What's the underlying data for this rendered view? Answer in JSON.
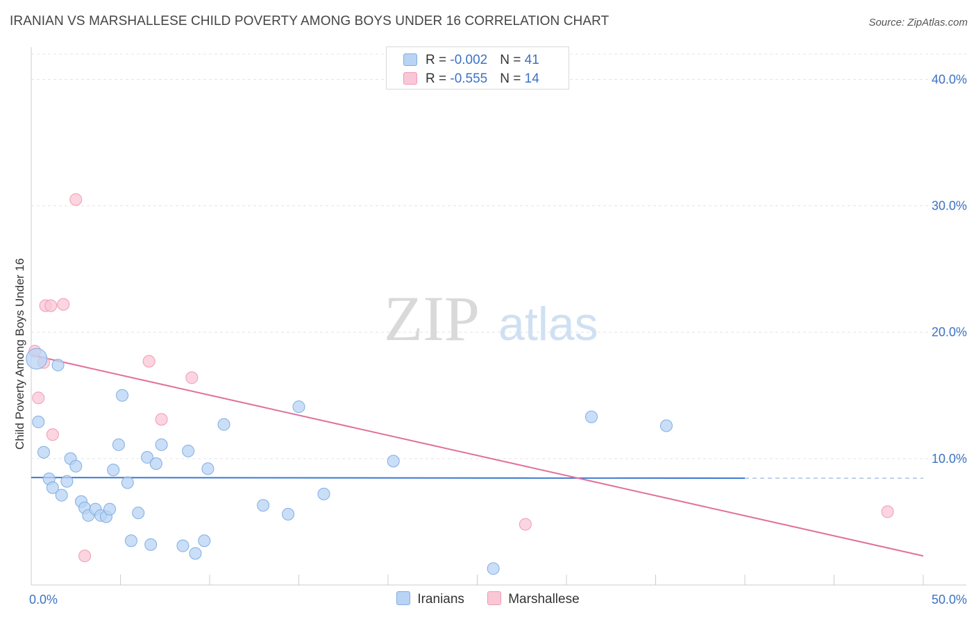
{
  "title": "IRANIAN VS MARSHALLESE CHILD POVERTY AMONG BOYS UNDER 16 CORRELATION CHART",
  "source": "Source: ZipAtlas.com",
  "watermark": {
    "zip": "ZIP",
    "atlas": "atlas"
  },
  "legend_top": {
    "rows": [
      {
        "r_label": "R = ",
        "r_value": "-0.002",
        "n_label": "N = ",
        "n_value": "41"
      },
      {
        "r_label": "R = ",
        "r_value": "-0.555",
        "n_label": "N = ",
        "n_value": "14"
      }
    ]
  },
  "legend_bottom": {
    "items": [
      "Iranians",
      "Marshallese"
    ]
  },
  "colors": {
    "iranians_fill": "#b8d3f4",
    "iranians_stroke": "#7eaee3",
    "iranians_line": "#3a78d0",
    "marshallese_fill": "#f9c7d6",
    "marshallese_stroke": "#f09ab5",
    "marshallese_line": "#e0709a",
    "tick_label": "#3b72c4",
    "grid": "#e3e3e3"
  },
  "chart_data": {
    "type": "scatter",
    "title": "IRANIAN VS MARSHALLESE CHILD POVERTY AMONG BOYS UNDER 16 CORRELATION CHART",
    "xlabel": "",
    "ylabel": "Child Poverty Among Boys Under 16",
    "xlim": [
      0,
      50
    ],
    "ylim": [
      0,
      42
    ],
    "x_tick_labels": [
      {
        "value": 0,
        "label": "0.0%"
      },
      {
        "value": 50,
        "label": "50.0%"
      }
    ],
    "y_tick_labels": [
      {
        "value": 10,
        "label": "10.0%"
      },
      {
        "value": 20,
        "label": "20.0%"
      },
      {
        "value": 30,
        "label": "30.0%"
      },
      {
        "value": 40,
        "label": "40.0%"
      }
    ],
    "grid": true,
    "legend": "top-center",
    "series": [
      {
        "name": "Iranians",
        "r": -0.002,
        "n": 41,
        "trend": {
          "x": [
            0,
            40
          ],
          "y": [
            8.5,
            8.45
          ],
          "dashed_to_x": 50
        },
        "points": [
          {
            "x": 0.3,
            "y": 17.9,
            "big": true
          },
          {
            "x": 1.5,
            "y": 17.4
          },
          {
            "x": 0.4,
            "y": 12.9
          },
          {
            "x": 0.7,
            "y": 10.5
          },
          {
            "x": 1.0,
            "y": 8.4
          },
          {
            "x": 1.2,
            "y": 7.7
          },
          {
            "x": 1.7,
            "y": 7.1
          },
          {
            "x": 2.0,
            "y": 8.2
          },
          {
            "x": 2.2,
            "y": 10.0
          },
          {
            "x": 2.5,
            "y": 9.4
          },
          {
            "x": 2.8,
            "y": 6.6
          },
          {
            "x": 3.0,
            "y": 6.1
          },
          {
            "x": 3.2,
            "y": 5.5
          },
          {
            "x": 3.6,
            "y": 6.0
          },
          {
            "x": 3.9,
            "y": 5.5
          },
          {
            "x": 4.2,
            "y": 5.4
          },
          {
            "x": 4.4,
            "y": 6.0
          },
          {
            "x": 4.6,
            "y": 9.1
          },
          {
            "x": 4.9,
            "y": 11.1
          },
          {
            "x": 5.1,
            "y": 15.0
          },
          {
            "x": 5.4,
            "y": 8.1
          },
          {
            "x": 5.6,
            "y": 3.5
          },
          {
            "x": 6.0,
            "y": 5.7
          },
          {
            "x": 6.5,
            "y": 10.1
          },
          {
            "x": 6.7,
            "y": 3.2
          },
          {
            "x": 7.0,
            "y": 9.6
          },
          {
            "x": 7.3,
            "y": 11.1
          },
          {
            "x": 8.5,
            "y": 3.1
          },
          {
            "x": 8.8,
            "y": 10.6
          },
          {
            "x": 9.2,
            "y": 2.5
          },
          {
            "x": 9.7,
            "y": 3.5
          },
          {
            "x": 9.9,
            "y": 9.2
          },
          {
            "x": 10.8,
            "y": 12.7
          },
          {
            "x": 13.0,
            "y": 6.3
          },
          {
            "x": 14.4,
            "y": 5.6
          },
          {
            "x": 15.0,
            "y": 14.1
          },
          {
            "x": 16.4,
            "y": 7.2
          },
          {
            "x": 20.3,
            "y": 9.8
          },
          {
            "x": 25.9,
            "y": 1.3
          },
          {
            "x": 31.4,
            "y": 13.3
          },
          {
            "x": 35.6,
            "y": 12.6
          }
        ]
      },
      {
        "name": "Marshallese",
        "r": -0.555,
        "n": 14,
        "trend": {
          "x": [
            0,
            50
          ],
          "y": [
            18.2,
            2.3
          ]
        },
        "points": [
          {
            "x": 0.2,
            "y": 18.5
          },
          {
            "x": 0.4,
            "y": 14.8
          },
          {
            "x": 0.7,
            "y": 17.6
          },
          {
            "x": 0.8,
            "y": 22.1
          },
          {
            "x": 1.1,
            "y": 22.1
          },
          {
            "x": 1.2,
            "y": 11.9
          },
          {
            "x": 1.8,
            "y": 22.2
          },
          {
            "x": 2.5,
            "y": 30.5
          },
          {
            "x": 3.0,
            "y": 2.3
          },
          {
            "x": 6.6,
            "y": 17.7
          },
          {
            "x": 7.3,
            "y": 13.1
          },
          {
            "x": 9.0,
            "y": 16.4
          },
          {
            "x": 27.7,
            "y": 4.8
          },
          {
            "x": 48.0,
            "y": 5.8
          }
        ]
      }
    ]
  }
}
